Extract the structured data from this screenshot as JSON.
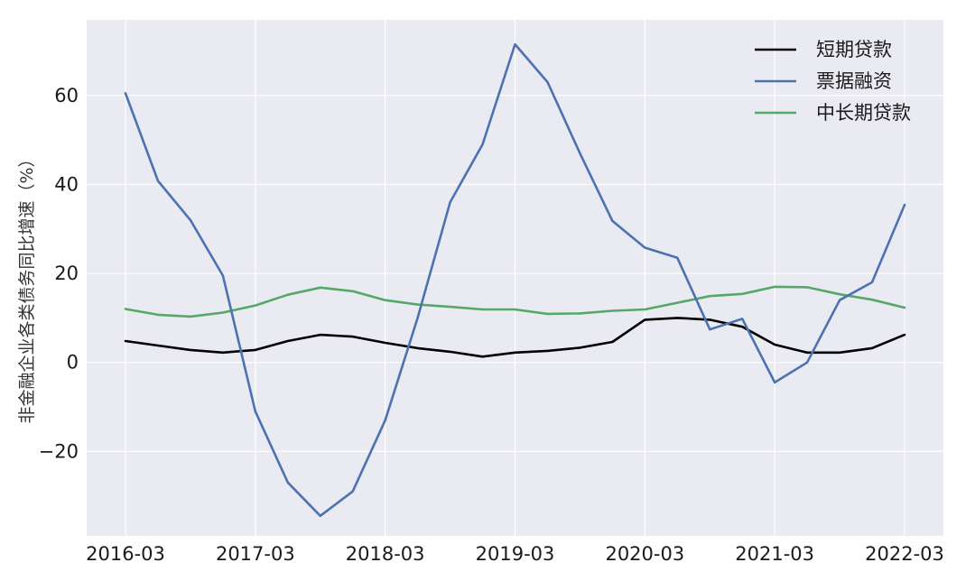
{
  "chart_data": {
    "type": "line",
    "title": "",
    "xlabel": "",
    "ylabel": "非金融企业各类债务同比增速（%）",
    "x": [
      "2016-03",
      "2016-06",
      "2016-09",
      "2016-12",
      "2017-03",
      "2017-06",
      "2017-09",
      "2017-12",
      "2018-03",
      "2018-06",
      "2018-09",
      "2018-12",
      "2019-03",
      "2019-06",
      "2019-09",
      "2019-12",
      "2020-03",
      "2020-06",
      "2020-09",
      "2020-12",
      "2021-03",
      "2021-06",
      "2021-09",
      "2021-12",
      "2022-03"
    ],
    "xticks": [
      "2016-03",
      "2017-03",
      "2018-03",
      "2019-03",
      "2020-03",
      "2021-03",
      "2022-03"
    ],
    "yticks": [
      -20,
      0,
      20,
      40,
      60
    ],
    "ylim": [
      -39,
      77
    ],
    "grid": true,
    "legend_position": "top-right",
    "background": "#eaeaf2",
    "series": [
      {
        "name": "短期贷款",
        "color": "#000000",
        "values": [
          4.8,
          3.8,
          2.8,
          2.2,
          2.8,
          4.8,
          6.2,
          5.8,
          4.4,
          3.2,
          2.4,
          1.3,
          2.2,
          2.6,
          3.3,
          4.6,
          9.6,
          10.0,
          9.6,
          8.0,
          4.0,
          2.2,
          2.2,
          3.2,
          6.2
        ]
      },
      {
        "name": "票据融资",
        "color": "#4c72b0",
        "values": [
          60.5,
          40.8,
          32.0,
          19.5,
          -11.0,
          -27.0,
          -34.5,
          -29.0,
          -13.0,
          10.0,
          36.0,
          49.0,
          71.5,
          63.0,
          47.0,
          31.8,
          25.8,
          23.5,
          7.4,
          9.8,
          -4.5,
          0.0,
          14.0,
          18.0,
          35.4
        ]
      },
      {
        "name": "中长期贷款",
        "color": "#55a868",
        "values": [
          12.0,
          10.7,
          10.3,
          11.2,
          12.8,
          15.2,
          16.8,
          16.0,
          14.0,
          13.0,
          12.5,
          11.9,
          11.9,
          10.9,
          11.0,
          11.6,
          11.9,
          13.4,
          14.9,
          15.4,
          17.0,
          16.9,
          15.3,
          14.1,
          12.3
        ]
      }
    ]
  }
}
